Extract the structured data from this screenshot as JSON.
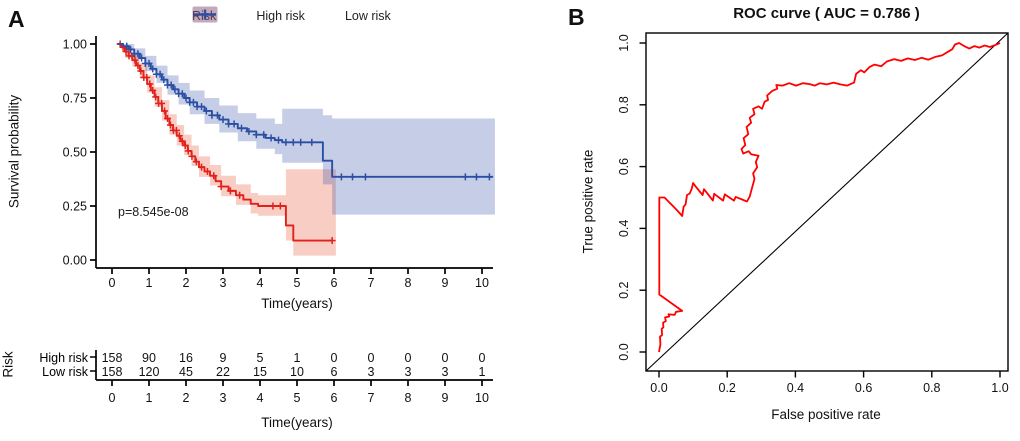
{
  "panels": {
    "a_label": "A",
    "b_label": "B"
  },
  "colors": {
    "km_red": "#e2211c",
    "km_blue": "#2a4fa4",
    "km_red_band": "rgba(233,90,60,0.30)",
    "km_blue_band": "rgba(67,90,173,0.30)",
    "roc_red": "#ff0000",
    "axis_black": "#000000"
  },
  "chart_data": [
    {
      "type": "line",
      "subtype": "kaplan-meier",
      "panel": "A",
      "title": "",
      "xlabel": "Time(years)",
      "ylabel": "Survival probability",
      "xlim": [
        0,
        10
      ],
      "ylim": [
        0,
        1
      ],
      "x_tick_values": [
        0,
        1,
        2,
        3,
        4,
        5,
        6,
        7,
        8,
        9,
        10
      ],
      "x_tick_labels": [
        "0",
        "1",
        "2",
        "3",
        "4",
        "5",
        "6",
        "7",
        "8",
        "9",
        "10"
      ],
      "y_tick_values": [
        1.0,
        0.75,
        0.5,
        0.25,
        0.0
      ],
      "y_tick_labels": [
        "1.00",
        "0.75",
        "0.50",
        "0.25",
        "0.00"
      ],
      "grid": false,
      "annotation": "p=8.545e-08",
      "legend": {
        "title": "Risk",
        "position": "top",
        "entries": [
          "High risk",
          "Low risk"
        ]
      },
      "series": [
        {
          "name": "High risk",
          "color": "#e2211c",
          "band_color": "rgba(233,90,60,0.30)",
          "steps": [
            [
              0.15,
              1.0
            ],
            [
              0.25,
              0.985
            ],
            [
              0.35,
              0.965
            ],
            [
              0.45,
              0.945
            ],
            [
              0.55,
              0.925
            ],
            [
              0.65,
              0.9
            ],
            [
              0.75,
              0.875
            ],
            [
              0.85,
              0.845
            ],
            [
              0.95,
              0.815
            ],
            [
              1.05,
              0.785
            ],
            [
              1.15,
              0.755
            ],
            [
              1.25,
              0.725
            ],
            [
              1.35,
              0.69
            ],
            [
              1.45,
              0.655
            ],
            [
              1.55,
              0.625
            ],
            [
              1.65,
              0.6
            ],
            [
              1.75,
              0.575
            ],
            [
              1.85,
              0.55
            ],
            [
              1.95,
              0.53
            ],
            [
              2.05,
              0.505
            ],
            [
              2.15,
              0.48
            ],
            [
              2.25,
              0.455
            ],
            [
              2.35,
              0.43
            ],
            [
              2.5,
              0.41
            ],
            [
              2.65,
              0.39
            ],
            [
              2.8,
              0.365
            ],
            [
              2.95,
              0.34
            ],
            [
              3.15,
              0.32
            ],
            [
              3.35,
              0.3
            ],
            [
              3.55,
              0.28
            ],
            [
              3.75,
              0.26
            ],
            [
              3.95,
              0.25
            ],
            [
              4.7,
              0.16
            ],
            [
              4.9,
              0.09
            ],
            [
              5.95,
              0.09
            ]
          ],
          "band": [
            [
              0.15,
              1.0,
              1.0
            ],
            [
              0.35,
              0.935,
              0.985
            ],
            [
              0.55,
              0.895,
              0.955
            ],
            [
              0.75,
              0.84,
              0.91
            ],
            [
              0.95,
              0.775,
              0.855
            ],
            [
              1.15,
              0.71,
              0.8
            ],
            [
              1.35,
              0.645,
              0.74
            ],
            [
              1.55,
              0.58,
              0.675
            ],
            [
              1.75,
              0.53,
              0.625
            ],
            [
              1.95,
              0.485,
              0.58
            ],
            [
              2.15,
              0.435,
              0.53
            ],
            [
              2.35,
              0.385,
              0.48
            ],
            [
              2.65,
              0.345,
              0.44
            ],
            [
              2.95,
              0.295,
              0.39
            ],
            [
              3.35,
              0.255,
              0.35
            ],
            [
              3.75,
              0.215,
              0.31
            ],
            [
              3.95,
              0.205,
              0.3
            ],
            [
              4.7,
              0.09,
              0.42
            ],
            [
              4.9,
              0.02,
              0.42
            ],
            [
              6.05,
              0.02,
              0.42
            ]
          ],
          "censor_times": [
            0.22,
            0.3,
            0.38,
            0.46,
            0.54,
            0.62,
            0.7,
            0.78,
            0.86,
            0.94,
            1.02,
            1.1,
            1.18,
            1.26,
            1.34,
            1.42,
            1.5,
            1.58,
            1.66,
            1.74,
            1.82,
            1.9,
            1.98,
            2.06,
            2.16,
            2.28,
            2.42,
            2.58,
            2.75,
            2.95,
            3.2,
            3.45,
            4.35,
            4.55,
            5.95
          ]
        },
        {
          "name": "Low risk",
          "color": "#2a4fa4",
          "band_color": "rgba(67,90,173,0.30)",
          "steps": [
            [
              0.15,
              1.0
            ],
            [
              0.3,
              0.99
            ],
            [
              0.45,
              0.975
            ],
            [
              0.6,
              0.955
            ],
            [
              0.75,
              0.935
            ],
            [
              0.9,
              0.91
            ],
            [
              1.05,
              0.885
            ],
            [
              1.2,
              0.86
            ],
            [
              1.35,
              0.835
            ],
            [
              1.5,
              0.81
            ],
            [
              1.65,
              0.79
            ],
            [
              1.8,
              0.77
            ],
            [
              1.95,
              0.75
            ],
            [
              2.1,
              0.73
            ],
            [
              2.3,
              0.71
            ],
            [
              2.5,
              0.69
            ],
            [
              2.7,
              0.67
            ],
            [
              2.9,
              0.65
            ],
            [
              3.15,
              0.63
            ],
            [
              3.4,
              0.61
            ],
            [
              3.65,
              0.595
            ],
            [
              3.9,
              0.58
            ],
            [
              4.15,
              0.565
            ],
            [
              4.4,
              0.555
            ],
            [
              4.6,
              0.545
            ],
            [
              5.7,
              0.46
            ],
            [
              5.95,
              0.385
            ],
            [
              10.3,
              0.385
            ]
          ],
          "band": [
            [
              0.15,
              1.0,
              1.0
            ],
            [
              0.3,
              0.975,
              1.0
            ],
            [
              0.6,
              0.93,
              0.98
            ],
            [
              0.9,
              0.875,
              0.945
            ],
            [
              1.2,
              0.82,
              0.9
            ],
            [
              1.5,
              0.765,
              0.855
            ],
            [
              1.8,
              0.72,
              0.82
            ],
            [
              2.1,
              0.675,
              0.785
            ],
            [
              2.5,
              0.63,
              0.75
            ],
            [
              2.9,
              0.59,
              0.715
            ],
            [
              3.4,
              0.55,
              0.68
            ],
            [
              3.9,
              0.515,
              0.655
            ],
            [
              4.4,
              0.49,
              0.63
            ],
            [
              4.6,
              0.45,
              0.7
            ],
            [
              5.7,
              0.35,
              0.67
            ],
            [
              5.95,
              0.21,
              0.655
            ],
            [
              10.35,
              0.21,
              0.655
            ]
          ],
          "censor_times": [
            0.4,
            0.5,
            0.6,
            0.7,
            0.8,
            0.9,
            1.0,
            1.1,
            1.2,
            1.3,
            1.4,
            1.5,
            1.6,
            1.7,
            1.8,
            1.9,
            2.0,
            2.1,
            2.2,
            2.3,
            2.42,
            2.55,
            2.7,
            2.85,
            3.0,
            3.15,
            3.3,
            3.5,
            3.7,
            3.9,
            4.1,
            4.3,
            4.5,
            4.7,
            4.9,
            5.1,
            5.4,
            6.2,
            6.5,
            6.85,
            9.55,
            9.85,
            10.2
          ]
        }
      ],
      "risk_table": {
        "label": "Risk",
        "xlabel": "Time(years)",
        "time_points": [
          0,
          1,
          2,
          3,
          4,
          5,
          6,
          7,
          8,
          9,
          10
        ],
        "rows": [
          {
            "name": "High risk",
            "color": "#e2211c",
            "counts": [
              "158",
              "90",
              "16",
              "9",
              "5",
              "1",
              "0",
              "0",
              "0",
              "0",
              "0"
            ]
          },
          {
            "name": "Low risk",
            "color": "#2a4fa4",
            "counts": [
              "158",
              "120",
              "45",
              "22",
              "15",
              "10",
              "6",
              "3",
              "3",
              "3",
              "1"
            ]
          }
        ]
      }
    },
    {
      "type": "line",
      "subtype": "roc",
      "panel": "B",
      "title": "ROC curve ( AUC =  0.786 )",
      "auc": 0.786,
      "xlabel": "False positive rate",
      "ylabel": "True positive rate",
      "xlim": [
        0,
        1
      ],
      "ylim": [
        0,
        1
      ],
      "x_tick_values": [
        0.0,
        0.2,
        0.4,
        0.6,
        0.8,
        1.0
      ],
      "x_tick_labels": [
        "0.0",
        "0.2",
        "0.4",
        "0.6",
        "0.8",
        "1.0"
      ],
      "y_tick_values": [
        0.0,
        0.2,
        0.4,
        0.6,
        0.8,
        1.0
      ],
      "y_tick_labels": [
        "0.0",
        "0.2",
        "0.4",
        "0.6",
        "0.8",
        "1.0"
      ],
      "diagonal_reference": true,
      "color": "#ff0000",
      "points": [
        [
          0,
          0
        ],
        [
          0.004,
          0.025
        ],
        [
          0.003,
          0.05
        ],
        [
          0.009,
          0.055
        ],
        [
          0.008,
          0.075
        ],
        [
          0.013,
          0.08
        ],
        [
          0.012,
          0.095
        ],
        [
          0.02,
          0.1
        ],
        [
          0.018,
          0.112
        ],
        [
          0.03,
          0.115
        ],
        [
          0.028,
          0.122
        ],
        [
          0.046,
          0.12
        ],
        [
          0.05,
          0.13
        ],
        [
          0.068,
          0.133
        ],
        [
          0.001,
          0.186
        ],
        [
          0.001,
          0.5
        ],
        [
          0.016,
          0.5
        ],
        [
          0.052,
          0.46
        ],
        [
          0.068,
          0.44
        ],
        [
          0.072,
          0.47
        ],
        [
          0.078,
          0.478
        ],
        [
          0.082,
          0.508
        ],
        [
          0.09,
          0.513
        ],
        [
          0.096,
          0.528
        ],
        [
          0.1,
          0.547
        ],
        [
          0.108,
          0.535
        ],
        [
          0.128,
          0.508
        ],
        [
          0.132,
          0.527
        ],
        [
          0.158,
          0.49
        ],
        [
          0.162,
          0.512
        ],
        [
          0.188,
          0.49
        ],
        [
          0.193,
          0.51
        ],
        [
          0.22,
          0.49
        ],
        [
          0.225,
          0.502
        ],
        [
          0.258,
          0.487
        ],
        [
          0.266,
          0.503
        ],
        [
          0.27,
          0.52
        ],
        [
          0.28,
          0.56
        ],
        [
          0.276,
          0.578
        ],
        [
          0.288,
          0.598
        ],
        [
          0.284,
          0.615
        ],
        [
          0.292,
          0.635
        ],
        [
          0.27,
          0.64
        ],
        [
          0.263,
          0.65
        ],
        [
          0.247,
          0.642
        ],
        [
          0.242,
          0.657
        ],
        [
          0.253,
          0.67
        ],
        [
          0.248,
          0.692
        ],
        [
          0.262,
          0.705
        ],
        [
          0.257,
          0.728
        ],
        [
          0.27,
          0.742
        ],
        [
          0.266,
          0.758
        ],
        [
          0.28,
          0.77
        ],
        [
          0.276,
          0.787
        ],
        [
          0.292,
          0.795
        ],
        [
          0.302,
          0.787
        ],
        [
          0.31,
          0.81
        ],
        [
          0.32,
          0.816
        ],
        [
          0.317,
          0.83
        ],
        [
          0.332,
          0.845
        ],
        [
          0.347,
          0.852
        ],
        [
          0.344,
          0.864
        ],
        [
          0.362,
          0.862
        ],
        [
          0.382,
          0.87
        ],
        [
          0.402,
          0.862
        ],
        [
          0.422,
          0.87
        ],
        [
          0.442,
          0.867
        ],
        [
          0.457,
          0.862
        ],
        [
          0.472,
          0.87
        ],
        [
          0.492,
          0.866
        ],
        [
          0.512,
          0.872
        ],
        [
          0.532,
          0.866
        ],
        [
          0.552,
          0.862
        ],
        [
          0.572,
          0.872
        ],
        [
          0.578,
          0.9
        ],
        [
          0.592,
          0.912
        ],
        [
          0.602,
          0.905
        ],
        [
          0.617,
          0.922
        ],
        [
          0.632,
          0.93
        ],
        [
          0.652,
          0.925
        ],
        [
          0.668,
          0.94
        ],
        [
          0.69,
          0.948
        ],
        [
          0.71,
          0.942
        ],
        [
          0.73,
          0.95
        ],
        [
          0.75,
          0.945
        ],
        [
          0.77,
          0.952
        ],
        [
          0.79,
          0.946
        ],
        [
          0.81,
          0.955
        ],
        [
          0.83,
          0.96
        ],
        [
          0.845,
          0.97
        ],
        [
          0.86,
          0.98
        ],
        [
          0.868,
          0.995
        ],
        [
          0.88,
          1
        ],
        [
          0.895,
          0.99
        ],
        [
          0.91,
          0.982
        ],
        [
          0.925,
          0.99
        ],
        [
          0.94,
          0.985
        ],
        [
          0.955,
          0.992
        ],
        [
          0.97,
          0.987
        ],
        [
          0.985,
          0.993
        ],
        [
          1,
          1
        ]
      ]
    }
  ]
}
